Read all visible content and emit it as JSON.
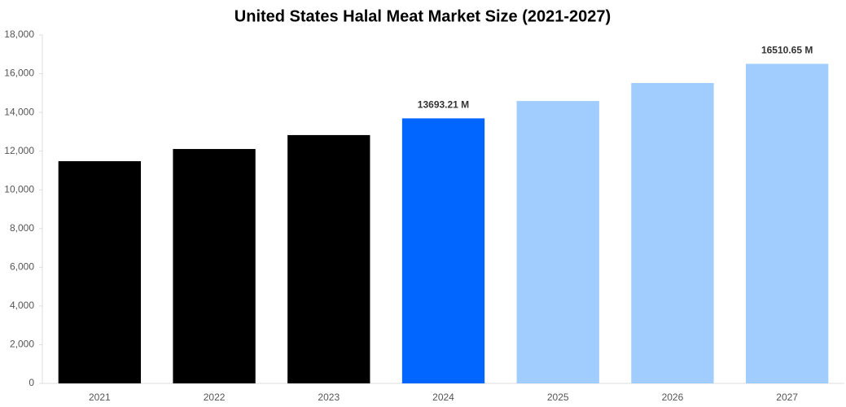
{
  "chart_data": {
    "type": "bar",
    "title": "United States Halal Meat Market Size (2021-2027)",
    "categories": [
      "2021",
      "2022",
      "2023",
      "2024",
      "2025",
      "2026",
      "2027"
    ],
    "values": [
      11480,
      12110,
      12830,
      13693.21,
      14590,
      15520,
      16510.65
    ],
    "value_labels": [
      null,
      null,
      null,
      "13693.21 M",
      null,
      null,
      "16510.65 M"
    ],
    "colors": [
      "#000000",
      "#000000",
      "#000000",
      "#0066ff",
      "#a0cdfd",
      "#a0cdfd",
      "#a0cdfd"
    ],
    "ylim": [
      0,
      18000
    ],
    "yticks": [
      0,
      {
        "value": 2000,
        "label": "2,000"
      },
      {
        "value": 4000,
        "label": "4,000"
      },
      {
        "value": 6000,
        "label": "6,000"
      },
      {
        "value": 8000,
        "label": "8,000"
      },
      {
        "value": 10000,
        "label": "10,000"
      },
      {
        "value": 12000,
        "label": "12,000"
      },
      {
        "value": 14000,
        "label": "14,000"
      },
      {
        "value": 16000,
        "label": "16,000"
      },
      {
        "value": 18000,
        "label": "18,000"
      }
    ],
    "grid": false
  }
}
